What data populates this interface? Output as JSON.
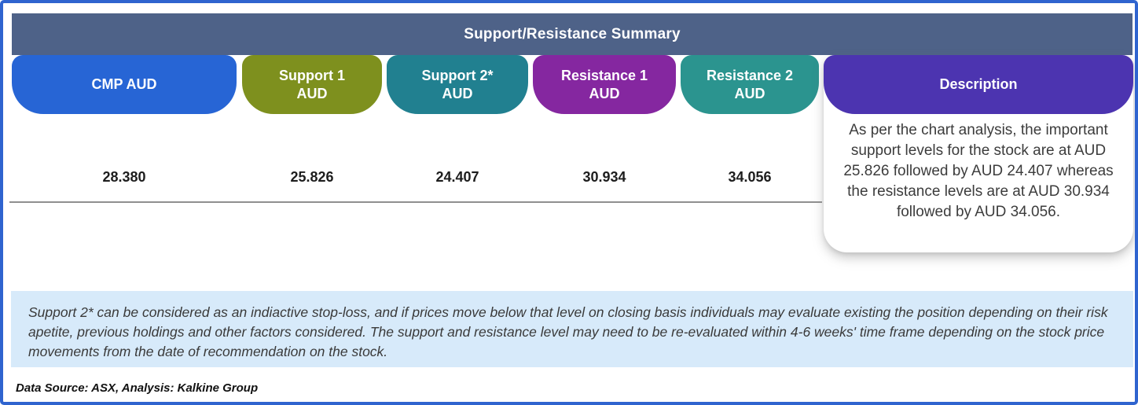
{
  "colors": {
    "frame_border": "#2f64cf",
    "header_bar": "#4e6288",
    "cmp": "#2765d5",
    "support1": "#7e901e",
    "support2": "#218090",
    "resistance1": "#8527a0",
    "resistance2": "#2b948f",
    "description": "#4c34b0",
    "note_bg": "#d7eafa"
  },
  "header": {
    "title": "Support/Resistance Summary"
  },
  "columns": [
    {
      "id": "cmp",
      "label_top": "CMP AUD",
      "label_bottom": "",
      "value": "28.380"
    },
    {
      "id": "support1",
      "label_top": "Support 1",
      "label_bottom": "AUD",
      "value": "25.826"
    },
    {
      "id": "support2",
      "label_top": "Support 2*",
      "label_bottom": "AUD",
      "value": "24.407"
    },
    {
      "id": "resistance1",
      "label_top": "Resistance 1",
      "label_bottom": "AUD",
      "value": "30.934"
    },
    {
      "id": "resistance2",
      "label_top": "Resistance 2",
      "label_bottom": "AUD",
      "value": "34.056"
    }
  ],
  "description": {
    "label": "Description",
    "text": "As per the chart analysis, the important support levels for the stock are at AUD 25.826 followed by AUD 24.407 whereas the resistance levels are at AUD 30.934 followed by AUD 34.056."
  },
  "note": "Support 2* can be considered as an indiactive stop-loss, and if prices move below that level on closing basis individuals may evaluate existing the position depending on their risk apetite, previous holdings and other factors considered. The support and resistance level may need to be re-evaluated within 4-6 weeks' time frame depending on the stock price movements from  the date of recommendation on the stock.",
  "footer": "Data Source: ASX, Analysis: Kalkine Group",
  "chart_data": {
    "type": "table",
    "title": "Support/Resistance Summary",
    "columns": [
      "CMP AUD",
      "Support 1 AUD",
      "Support 2* AUD",
      "Resistance 1 AUD",
      "Resistance 2 AUD",
      "Description"
    ],
    "rows": [
      [
        "28.380",
        "25.826",
        "24.407",
        "30.934",
        "34.056",
        "As per the chart analysis, the important support levels for the stock are at AUD 25.826 followed by AUD 24.407 whereas the resistance levels are at AUD 30.934 followed by AUD 34.056."
      ]
    ],
    "values": {
      "cmp_aud": 28.38,
      "support_1_aud": 25.826,
      "support_2_aud": 24.407,
      "resistance_1_aud": 30.934,
      "resistance_2_aud": 34.056
    }
  }
}
